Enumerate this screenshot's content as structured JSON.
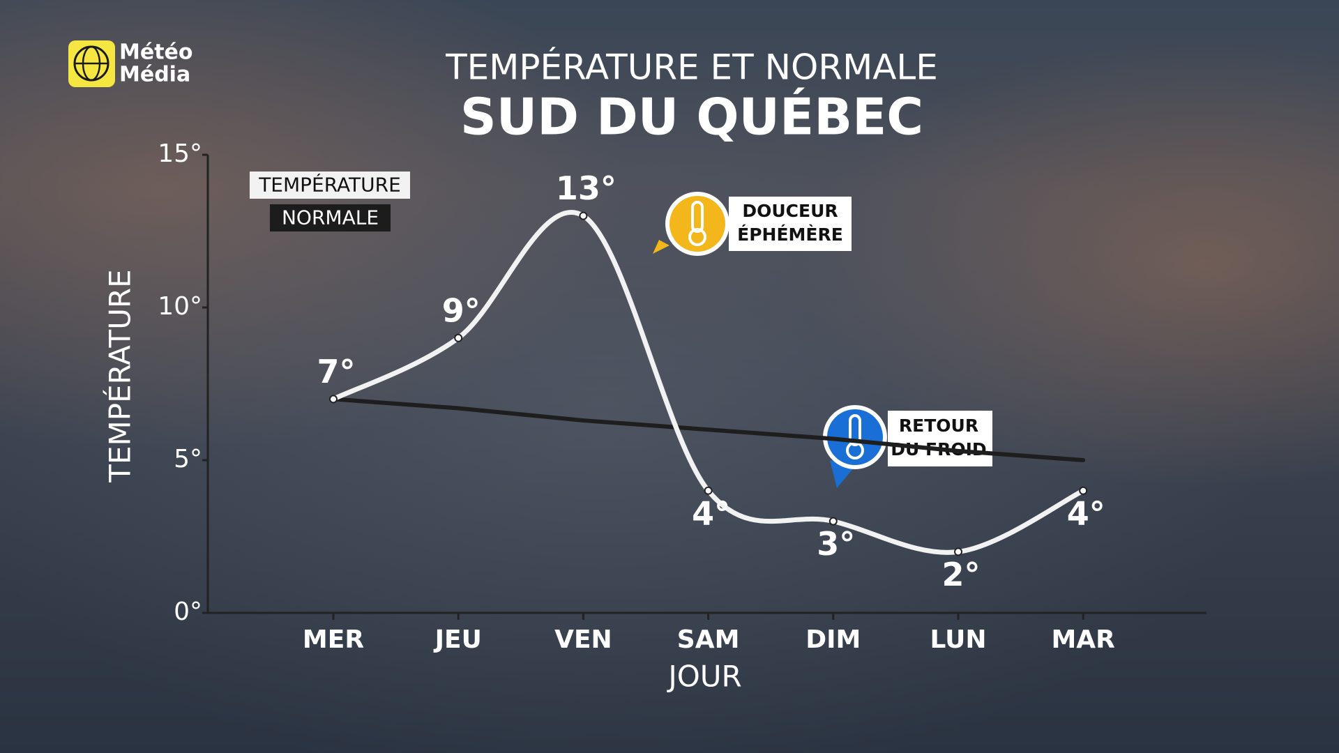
{
  "logo": [
    "Météo",
    "Média"
  ],
  "chart_data": {
    "type": "line",
    "title": "TEMPÉRATURE ET NORMALE",
    "subtitle": "SUD DU QUÉBEC",
    "x_label": "JOUR",
    "y_label": "TEMPÉRATURE",
    "categories": [
      "MER",
      "JEU",
      "VEN",
      "SAM",
      "DIM",
      "LUN",
      "MAR"
    ],
    "series": [
      {
        "name": "TEMPÉRATURE",
        "color": "#f2f2f2",
        "smooth": true,
        "values": [
          7,
          9,
          13,
          4,
          3,
          2,
          4
        ],
        "value_labels": [
          "7°",
          "9°",
          "13°",
          "4°",
          "3°",
          "2°",
          "4°"
        ]
      },
      {
        "name": "NORMALE",
        "color": "#1e1e1e",
        "smooth": false,
        "values": [
          7,
          6.7,
          6.3,
          6,
          5.7,
          5.3,
          5
        ]
      }
    ],
    "ylim": [
      0,
      15
    ],
    "yticks": [
      {
        "value": 0,
        "label": "0°"
      },
      {
        "value": 5,
        "label": "5°"
      },
      {
        "value": 10,
        "label": "10°"
      },
      {
        "value": 15,
        "label": "15°"
      }
    ],
    "annotations": [
      {
        "lines": [
          "DOUCEUR",
          "ÉPHÉMÈRE"
        ],
        "color": "#f3b61b"
      },
      {
        "lines": [
          "RETOUR",
          "DU FROID"
        ],
        "color": "#1a6fd6"
      }
    ]
  }
}
